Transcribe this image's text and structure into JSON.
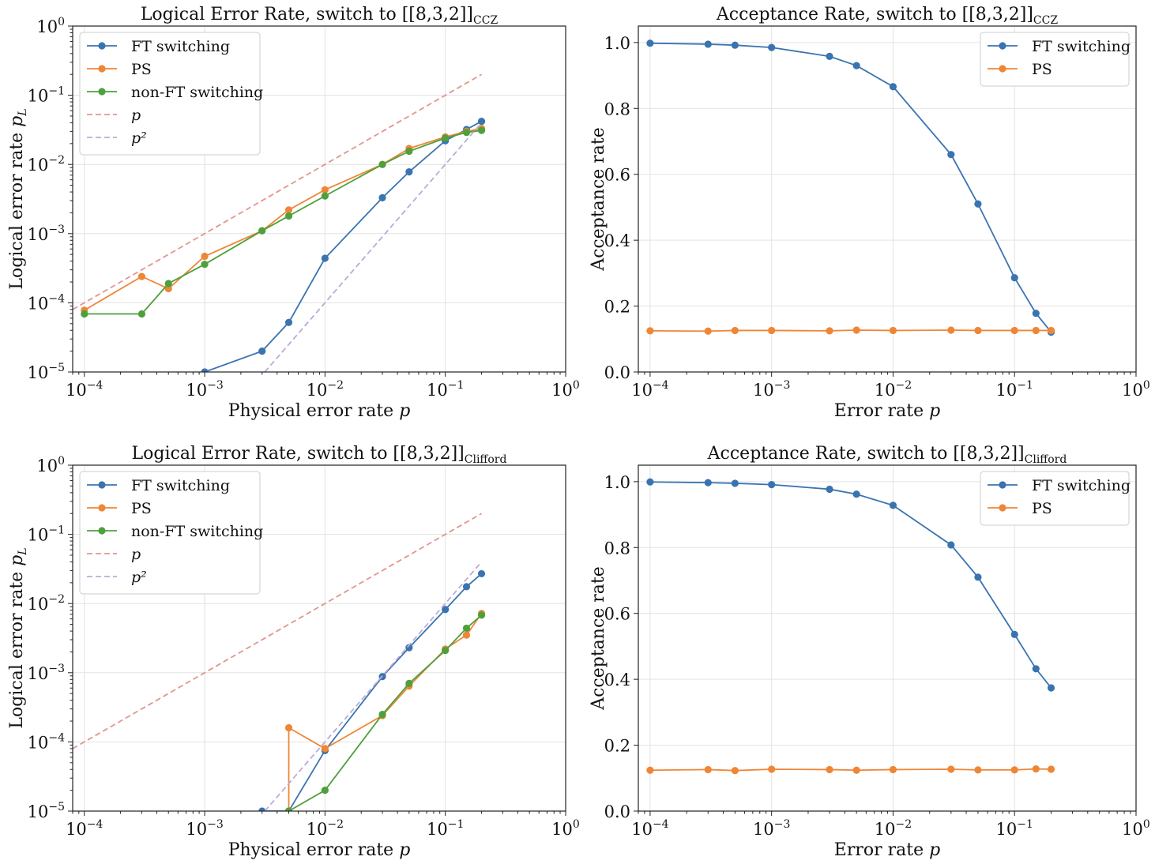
{
  "chart_data": [
    {
      "type": "line",
      "title": "Logical Error Rate, switch to [[8,3,2]]",
      "title_subscript": "CCZ",
      "xlabel": "Physical error rate p",
      "ylabel": "Logical error rate p_L",
      "xscale": "log",
      "yscale": "log",
      "xlim": [
        8e-05,
        1
      ],
      "ylim": [
        1e-05,
        1
      ],
      "xticks": [
        "10^-4",
        "10^-3",
        "10^-2",
        "10^-1",
        "10^0"
      ],
      "yticks": [
        "10^-5",
        "10^-4",
        "10^-3",
        "10^-2",
        "10^-1",
        "10^0"
      ],
      "grid": true,
      "legend_position": "top-left",
      "series": [
        {
          "name": "FT switching",
          "color": "#3a74b0",
          "style": "solid-marker",
          "x": [
            0.001,
            0.003,
            0.005,
            0.01,
            0.03,
            0.05,
            0.1,
            0.15,
            0.2
          ],
          "y": [
            1e-05,
            2e-05,
            5.2e-05,
            0.00044,
            0.0033,
            0.0078,
            0.022,
            0.032,
            0.042
          ]
        },
        {
          "name": "PS",
          "color": "#ef8636",
          "style": "solid-marker",
          "x": [
            0.0001,
            0.0003,
            0.0005,
            0.001,
            0.003,
            0.005,
            0.01,
            0.03,
            0.05,
            0.1,
            0.15,
            0.2
          ],
          "y": [
            7.8e-05,
            0.00024,
            0.00016,
            0.00047,
            0.0011,
            0.0022,
            0.0043,
            0.01,
            0.017,
            0.025,
            0.03,
            0.033
          ]
        },
        {
          "name": "non-FT switching",
          "color": "#4ea03c",
          "style": "solid-marker",
          "x": [
            0.0001,
            0.0003,
            0.0005,
            0.001,
            0.003,
            0.005,
            0.01,
            0.03,
            0.05,
            0.1,
            0.15,
            0.2
          ],
          "y": [
            6.9e-05,
            6.9e-05,
            0.00019,
            0.00036,
            0.0011,
            0.0018,
            0.0035,
            0.01,
            0.0155,
            0.024,
            0.029,
            0.031
          ]
        },
        {
          "name": "p",
          "color": "#e1968f",
          "style": "dashed",
          "x": [
            8e-05,
            0.2
          ],
          "y": [
            8e-05,
            0.2
          ]
        },
        {
          "name": "p²",
          "color": "#bcaad8",
          "style": "dashed",
          "x": [
            0.00316,
            0.2
          ],
          "y": [
            1e-05,
            0.04
          ]
        }
      ]
    },
    {
      "type": "line",
      "title": "Acceptance Rate, switch to [[8,3,2]]",
      "title_subscript": "CCZ",
      "xlabel": "Error rate p",
      "ylabel": "Acceptance rate",
      "xscale": "log",
      "yscale": "linear",
      "xlim": [
        8e-05,
        1
      ],
      "ylim": [
        0,
        1.05
      ],
      "xticks": [
        "10^-4",
        "10^-3",
        "10^-2",
        "10^-1",
        "10^0"
      ],
      "yticks": [
        "0.0",
        "0.2",
        "0.4",
        "0.6",
        "0.8",
        "1.0"
      ],
      "grid": true,
      "legend_position": "top-right",
      "series": [
        {
          "name": "FT switching",
          "color": "#3a74b0",
          "style": "solid-marker",
          "x": [
            0.0001,
            0.0003,
            0.0005,
            0.001,
            0.003,
            0.005,
            0.01,
            0.03,
            0.05,
            0.1,
            0.15,
            0.2
          ],
          "y": [
            0.998,
            0.995,
            0.992,
            0.985,
            0.958,
            0.93,
            0.866,
            0.66,
            0.51,
            0.286,
            0.178,
            0.121
          ]
        },
        {
          "name": "PS",
          "color": "#ef8636",
          "style": "solid-marker",
          "x": [
            0.0001,
            0.0003,
            0.0005,
            0.001,
            0.003,
            0.005,
            0.01,
            0.03,
            0.05,
            0.1,
            0.15,
            0.2
          ],
          "y": [
            0.125,
            0.124,
            0.126,
            0.126,
            0.125,
            0.127,
            0.126,
            0.127,
            0.126,
            0.126,
            0.126,
            0.126
          ]
        }
      ]
    },
    {
      "type": "line",
      "title": "Logical Error Rate, switch to [[8,3,2]]",
      "title_subscript": "Clifford",
      "xlabel": "Physical error rate p",
      "ylabel": "Logical error rate p_L",
      "xscale": "log",
      "yscale": "log",
      "xlim": [
        8e-05,
        1
      ],
      "ylim": [
        1e-05,
        1
      ],
      "xticks": [
        "10^-4",
        "10^-3",
        "10^-2",
        "10^-1",
        "10^0"
      ],
      "yticks": [
        "10^-5",
        "10^-4",
        "10^-3",
        "10^-2",
        "10^-1",
        "10^0"
      ],
      "grid": true,
      "legend_position": "top-left",
      "series": [
        {
          "name": "FT switching",
          "color": "#3a74b0",
          "style": "solid-marker",
          "x": [
            0.003,
            0.005,
            0.01,
            0.03,
            0.05,
            0.1,
            0.15,
            0.2
          ],
          "y": [
            1e-05,
            1e-05,
            7.5e-05,
            0.00088,
            0.0023,
            0.0082,
            0.0175,
            0.027
          ]
        },
        {
          "name": "PS",
          "color": "#ef8636",
          "style": "solid-marker",
          "x": [
            0.005,
            0.005,
            0.01,
            0.03,
            0.05,
            0.1,
            0.15,
            0.2
          ],
          "y": [
            1e-05,
            0.00016,
            8e-05,
            0.00024,
            0.00064,
            0.0022,
            0.0035,
            0.0072
          ]
        },
        {
          "name": "non-FT switching",
          "color": "#4ea03c",
          "style": "solid-marker",
          "x": [
            0.005,
            0.01,
            0.03,
            0.05,
            0.1,
            0.15,
            0.2
          ],
          "y": [
            1e-05,
            2e-05,
            0.00025,
            0.0007,
            0.0021,
            0.0044,
            0.0068
          ]
        },
        {
          "name": "p",
          "color": "#e1968f",
          "style": "dashed",
          "x": [
            8e-05,
            0.2
          ],
          "y": [
            8e-05,
            0.2
          ]
        },
        {
          "name": "p²",
          "color": "#bcaad8",
          "style": "dashed",
          "x": [
            0.00316,
            0.2
          ],
          "y": [
            1e-05,
            0.04
          ]
        }
      ]
    },
    {
      "type": "line",
      "title": "Acceptance Rate, switch to [[8,3,2]]",
      "title_subscript": "Clifford",
      "xlabel": "Error rate p",
      "ylabel": "Acceptance rate",
      "xscale": "log",
      "yscale": "linear",
      "xlim": [
        8e-05,
        1
      ],
      "ylim": [
        0,
        1.05
      ],
      "xticks": [
        "10^-4",
        "10^-3",
        "10^-2",
        "10^-1",
        "10^0"
      ],
      "yticks": [
        "0.0",
        "0.2",
        "0.4",
        "0.6",
        "0.8",
        "1.0"
      ],
      "grid": true,
      "legend_position": "top-right",
      "series": [
        {
          "name": "FT switching",
          "color": "#3a74b0",
          "style": "solid-marker",
          "x": [
            0.0001,
            0.0003,
            0.0005,
            0.001,
            0.003,
            0.005,
            0.01,
            0.03,
            0.05,
            0.1,
            0.15,
            0.2
          ],
          "y": [
            0.999,
            0.997,
            0.995,
            0.991,
            0.977,
            0.962,
            0.928,
            0.808,
            0.71,
            0.536,
            0.432,
            0.374
          ]
        },
        {
          "name": "PS",
          "color": "#ef8636",
          "style": "solid-marker",
          "x": [
            0.0001,
            0.0003,
            0.0005,
            0.001,
            0.003,
            0.005,
            0.01,
            0.03,
            0.05,
            0.1,
            0.15,
            0.2
          ],
          "y": [
            0.124,
            0.126,
            0.123,
            0.127,
            0.126,
            0.124,
            0.126,
            0.127,
            0.125,
            0.125,
            0.128,
            0.127
          ]
        }
      ]
    }
  ]
}
